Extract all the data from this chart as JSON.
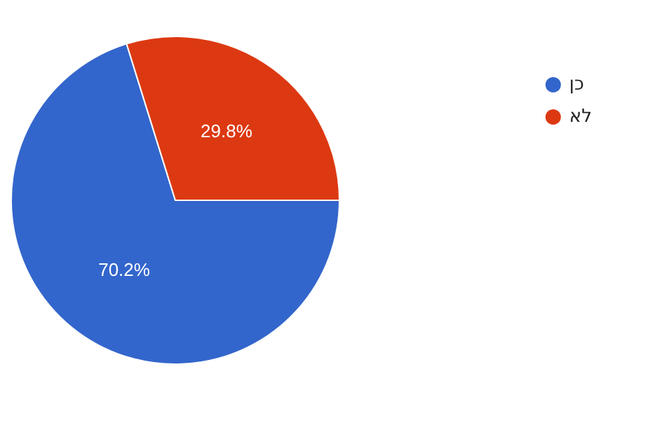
{
  "chart_data": {
    "type": "pie",
    "categories": [
      "כן",
      "לא"
    ],
    "values": [
      70.2,
      29.8
    ],
    "colors": [
      "#3366cc",
      "#dc3912"
    ],
    "value_labels": [
      "70.2%",
      "29.8%"
    ],
    "legend": "top right"
  }
}
